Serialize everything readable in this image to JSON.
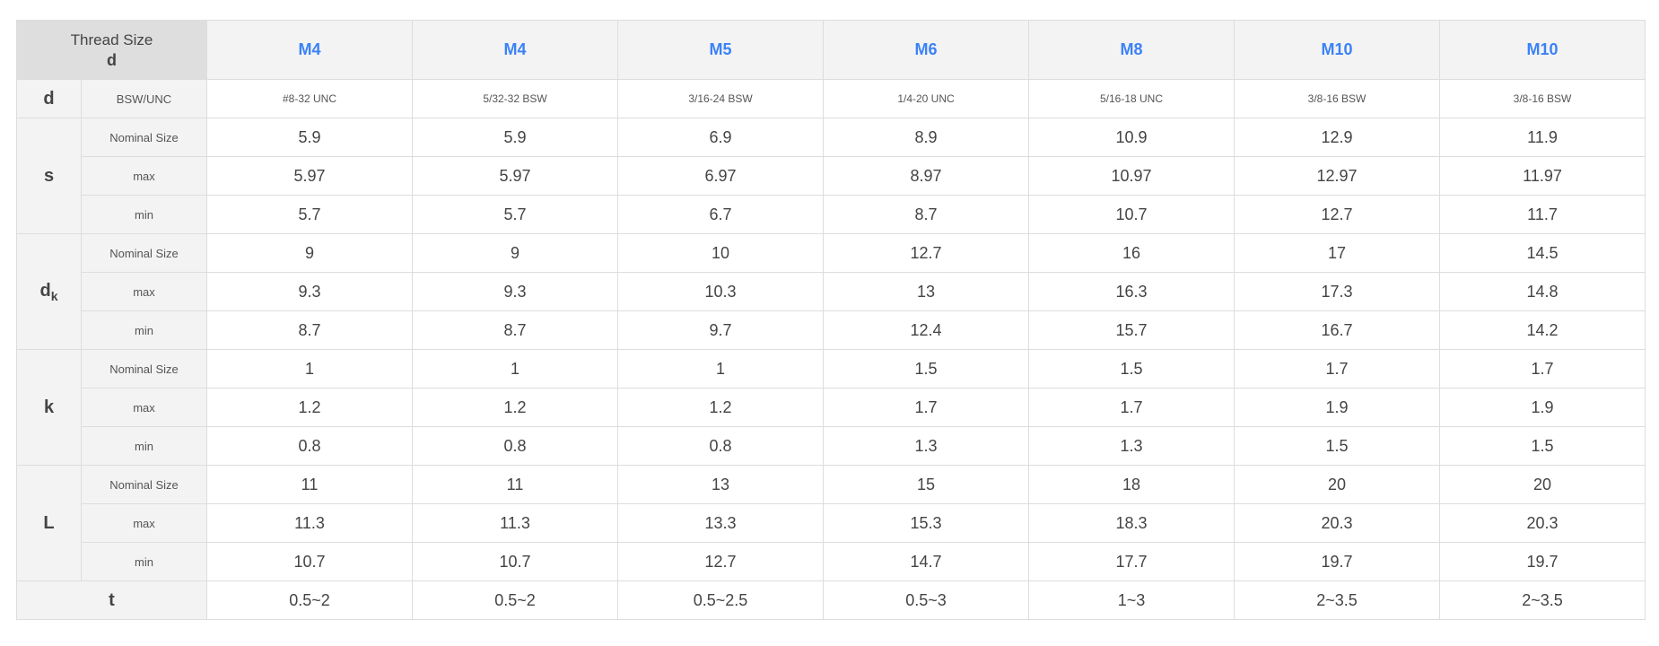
{
  "header": {
    "corner_title": "Thread Size",
    "corner_sub": "d",
    "sizes": [
      "M4",
      "M4",
      "M5",
      "M6",
      "M8",
      "M10",
      "M10"
    ]
  },
  "thread_row": {
    "dim": "d",
    "label": "BSW/UNC",
    "values": [
      "#8-32 UNC",
      "5/32-32 BSW",
      "3/16-24 BSW",
      "1/4-20 UNC",
      "5/16-18 UNC",
      "3/8-16 BSW",
      "3/8-16 BSW"
    ]
  },
  "groups": [
    {
      "dim": "s",
      "dim_sub": "",
      "rows": [
        {
          "label": "Nominal Size",
          "values": [
            "5.9",
            "5.9",
            "6.9",
            "8.9",
            "10.9",
            "12.9",
            "11.9"
          ]
        },
        {
          "label": "max",
          "values": [
            "5.97",
            "5.97",
            "6.97",
            "8.97",
            "10.97",
            "12.97",
            "11.97"
          ]
        },
        {
          "label": "min",
          "values": [
            "5.7",
            "5.7",
            "6.7",
            "8.7",
            "10.7",
            "12.7",
            "11.7"
          ]
        }
      ]
    },
    {
      "dim": "d",
      "dim_sub": "k",
      "rows": [
        {
          "label": "Nominal Size",
          "values": [
            "9",
            "9",
            "10",
            "12.7",
            "16",
            "17",
            "14.5"
          ]
        },
        {
          "label": "max",
          "values": [
            "9.3",
            "9.3",
            "10.3",
            "13",
            "16.3",
            "17.3",
            "14.8"
          ]
        },
        {
          "label": "min",
          "values": [
            "8.7",
            "8.7",
            "9.7",
            "12.4",
            "15.7",
            "16.7",
            "14.2"
          ]
        }
      ]
    },
    {
      "dim": "k",
      "dim_sub": "",
      "rows": [
        {
          "label": "Nominal Size",
          "values": [
            "1",
            "1",
            "1",
            "1.5",
            "1.5",
            "1.7",
            "1.7"
          ]
        },
        {
          "label": "max",
          "values": [
            "1.2",
            "1.2",
            "1.2",
            "1.7",
            "1.7",
            "1.9",
            "1.9"
          ]
        },
        {
          "label": "min",
          "values": [
            "0.8",
            "0.8",
            "0.8",
            "1.3",
            "1.3",
            "1.5",
            "1.5"
          ]
        }
      ]
    },
    {
      "dim": "L",
      "dim_sub": "",
      "rows": [
        {
          "label": "Nominal Size",
          "values": [
            "11",
            "11",
            "13",
            "15",
            "18",
            "20",
            "20"
          ]
        },
        {
          "label": "max",
          "values": [
            "11.3",
            "11.3",
            "13.3",
            "15.3",
            "18.3",
            "20.3",
            "20.3"
          ]
        },
        {
          "label": "min",
          "values": [
            "10.7",
            "10.7",
            "12.7",
            "14.7",
            "17.7",
            "19.7",
            "19.7"
          ]
        }
      ]
    }
  ],
  "t_row": {
    "dim": "t",
    "values": [
      "0.5~2",
      "0.5~2",
      "0.5~2.5",
      "0.5~3",
      "1~3",
      "2~3.5",
      "2~3.5"
    ]
  }
}
